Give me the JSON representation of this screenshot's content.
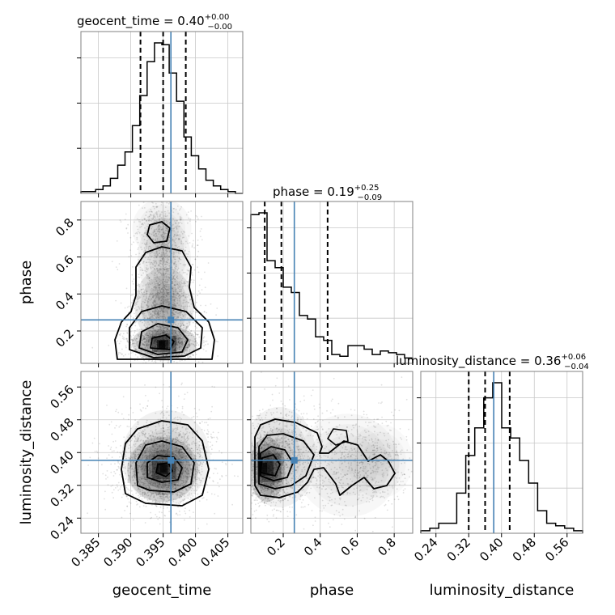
{
  "chart_data": {
    "type": "corner",
    "parameters": [
      "geocent_time",
      "phase",
      "luminosity_distance"
    ],
    "truths": [
      0.3962,
      0.26,
      0.381
    ],
    "truth_color": "#4682b4",
    "ranges": [
      [
        0.3823,
        0.4073
      ],
      [
        0.025,
        0.9
      ],
      [
        0.203,
        0.598
      ]
    ],
    "titles": [
      {
        "name": "geocent_time",
        "value": "0.40",
        "plus": "+0.00",
        "minus": "−0.00"
      },
      {
        "name": "phase",
        "value": "0.19",
        "plus": "+0.25",
        "minus": "−0.09"
      },
      {
        "name": "luminosity_distance",
        "value": "0.36",
        "plus": "+0.06",
        "minus": "−0.04"
      }
    ],
    "quantiles": [
      [
        0.3915,
        0.395,
        0.3985
      ],
      [
        0.1,
        0.19,
        0.44
      ],
      [
        0.32,
        0.36,
        0.42
      ]
    ],
    "ticks": [
      [
        "0.385",
        "0.390",
        "0.395",
        "0.400",
        "0.405"
      ],
      [
        "0.2",
        "0.4",
        "0.6",
        "0.8"
      ],
      [
        "0.24",
        "0.32",
        "0.40",
        "0.48",
        "0.56"
      ]
    ],
    "histograms": [
      {
        "counts": [
          1,
          1,
          2,
          4,
          8,
          15,
          22,
          36,
          52,
          70,
          80,
          79,
          64,
          49,
          30,
          20,
          13,
          7,
          4,
          2,
          1,
          0
        ]
      },
      {
        "counts": [
          84,
          85,
          58,
          54,
          43,
          40,
          27,
          25,
          15,
          13,
          5,
          4,
          10,
          10,
          8,
          5,
          7,
          6,
          5,
          3
        ]
      },
      {
        "counts": [
          1,
          2,
          4,
          4,
          16,
          31,
          42,
          54,
          60,
          42,
          38,
          29,
          20,
          9,
          4,
          3,
          2,
          1
        ]
      }
    ],
    "grid": true
  }
}
